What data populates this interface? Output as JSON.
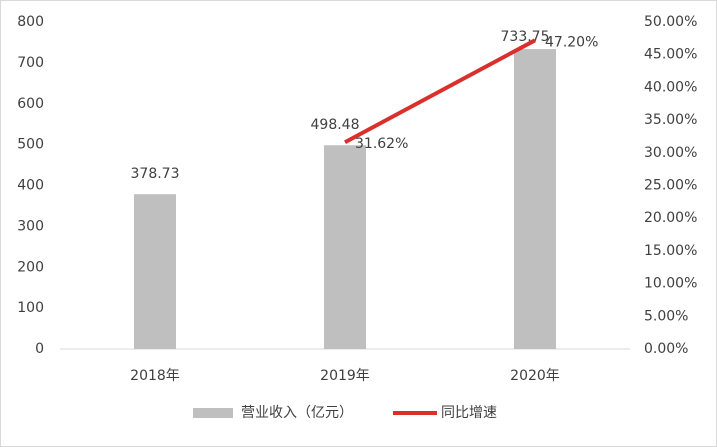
{
  "chart_data": {
    "type": "bar",
    "categories": [
      "2018年",
      "2019年",
      "2020年"
    ],
    "series": [
      {
        "name": "营业收入（亿元）",
        "color": "#bfbfbf",
        "values": [
          378.73,
          498.48,
          733.75
        ]
      },
      {
        "name": "同比增速",
        "type": "line",
        "axis": "y2",
        "color": "#d9302c",
        "values": [
          null,
          31.62,
          47.2
        ],
        "value_labels": [
          null,
          "31.62%",
          "47.20%"
        ]
      }
    ],
    "ylim": [
      0,
      800
    ],
    "yticks": [
      0,
      100,
      200,
      300,
      400,
      500,
      600,
      700,
      800
    ],
    "y2lim": [
      0,
      50
    ],
    "y2ticks": [
      {
        "value": 0,
        "label": "0.00%"
      },
      {
        "value": 5,
        "label": "5.00%"
      },
      {
        "value": 10,
        "label": "10.00%"
      },
      {
        "value": 15,
        "label": "15.00%"
      },
      {
        "value": 20,
        "label": "20.00%"
      },
      {
        "value": 25,
        "label": "25.00%"
      },
      {
        "value": 30,
        "label": "30.00%"
      },
      {
        "value": 35,
        "label": "35.00%"
      },
      {
        "value": 40,
        "label": "40.00%"
      },
      {
        "value": 45,
        "label": "45.00%"
      },
      {
        "value": 50,
        "label": "50.00%"
      }
    ],
    "grid": false,
    "legend": "bottom"
  }
}
